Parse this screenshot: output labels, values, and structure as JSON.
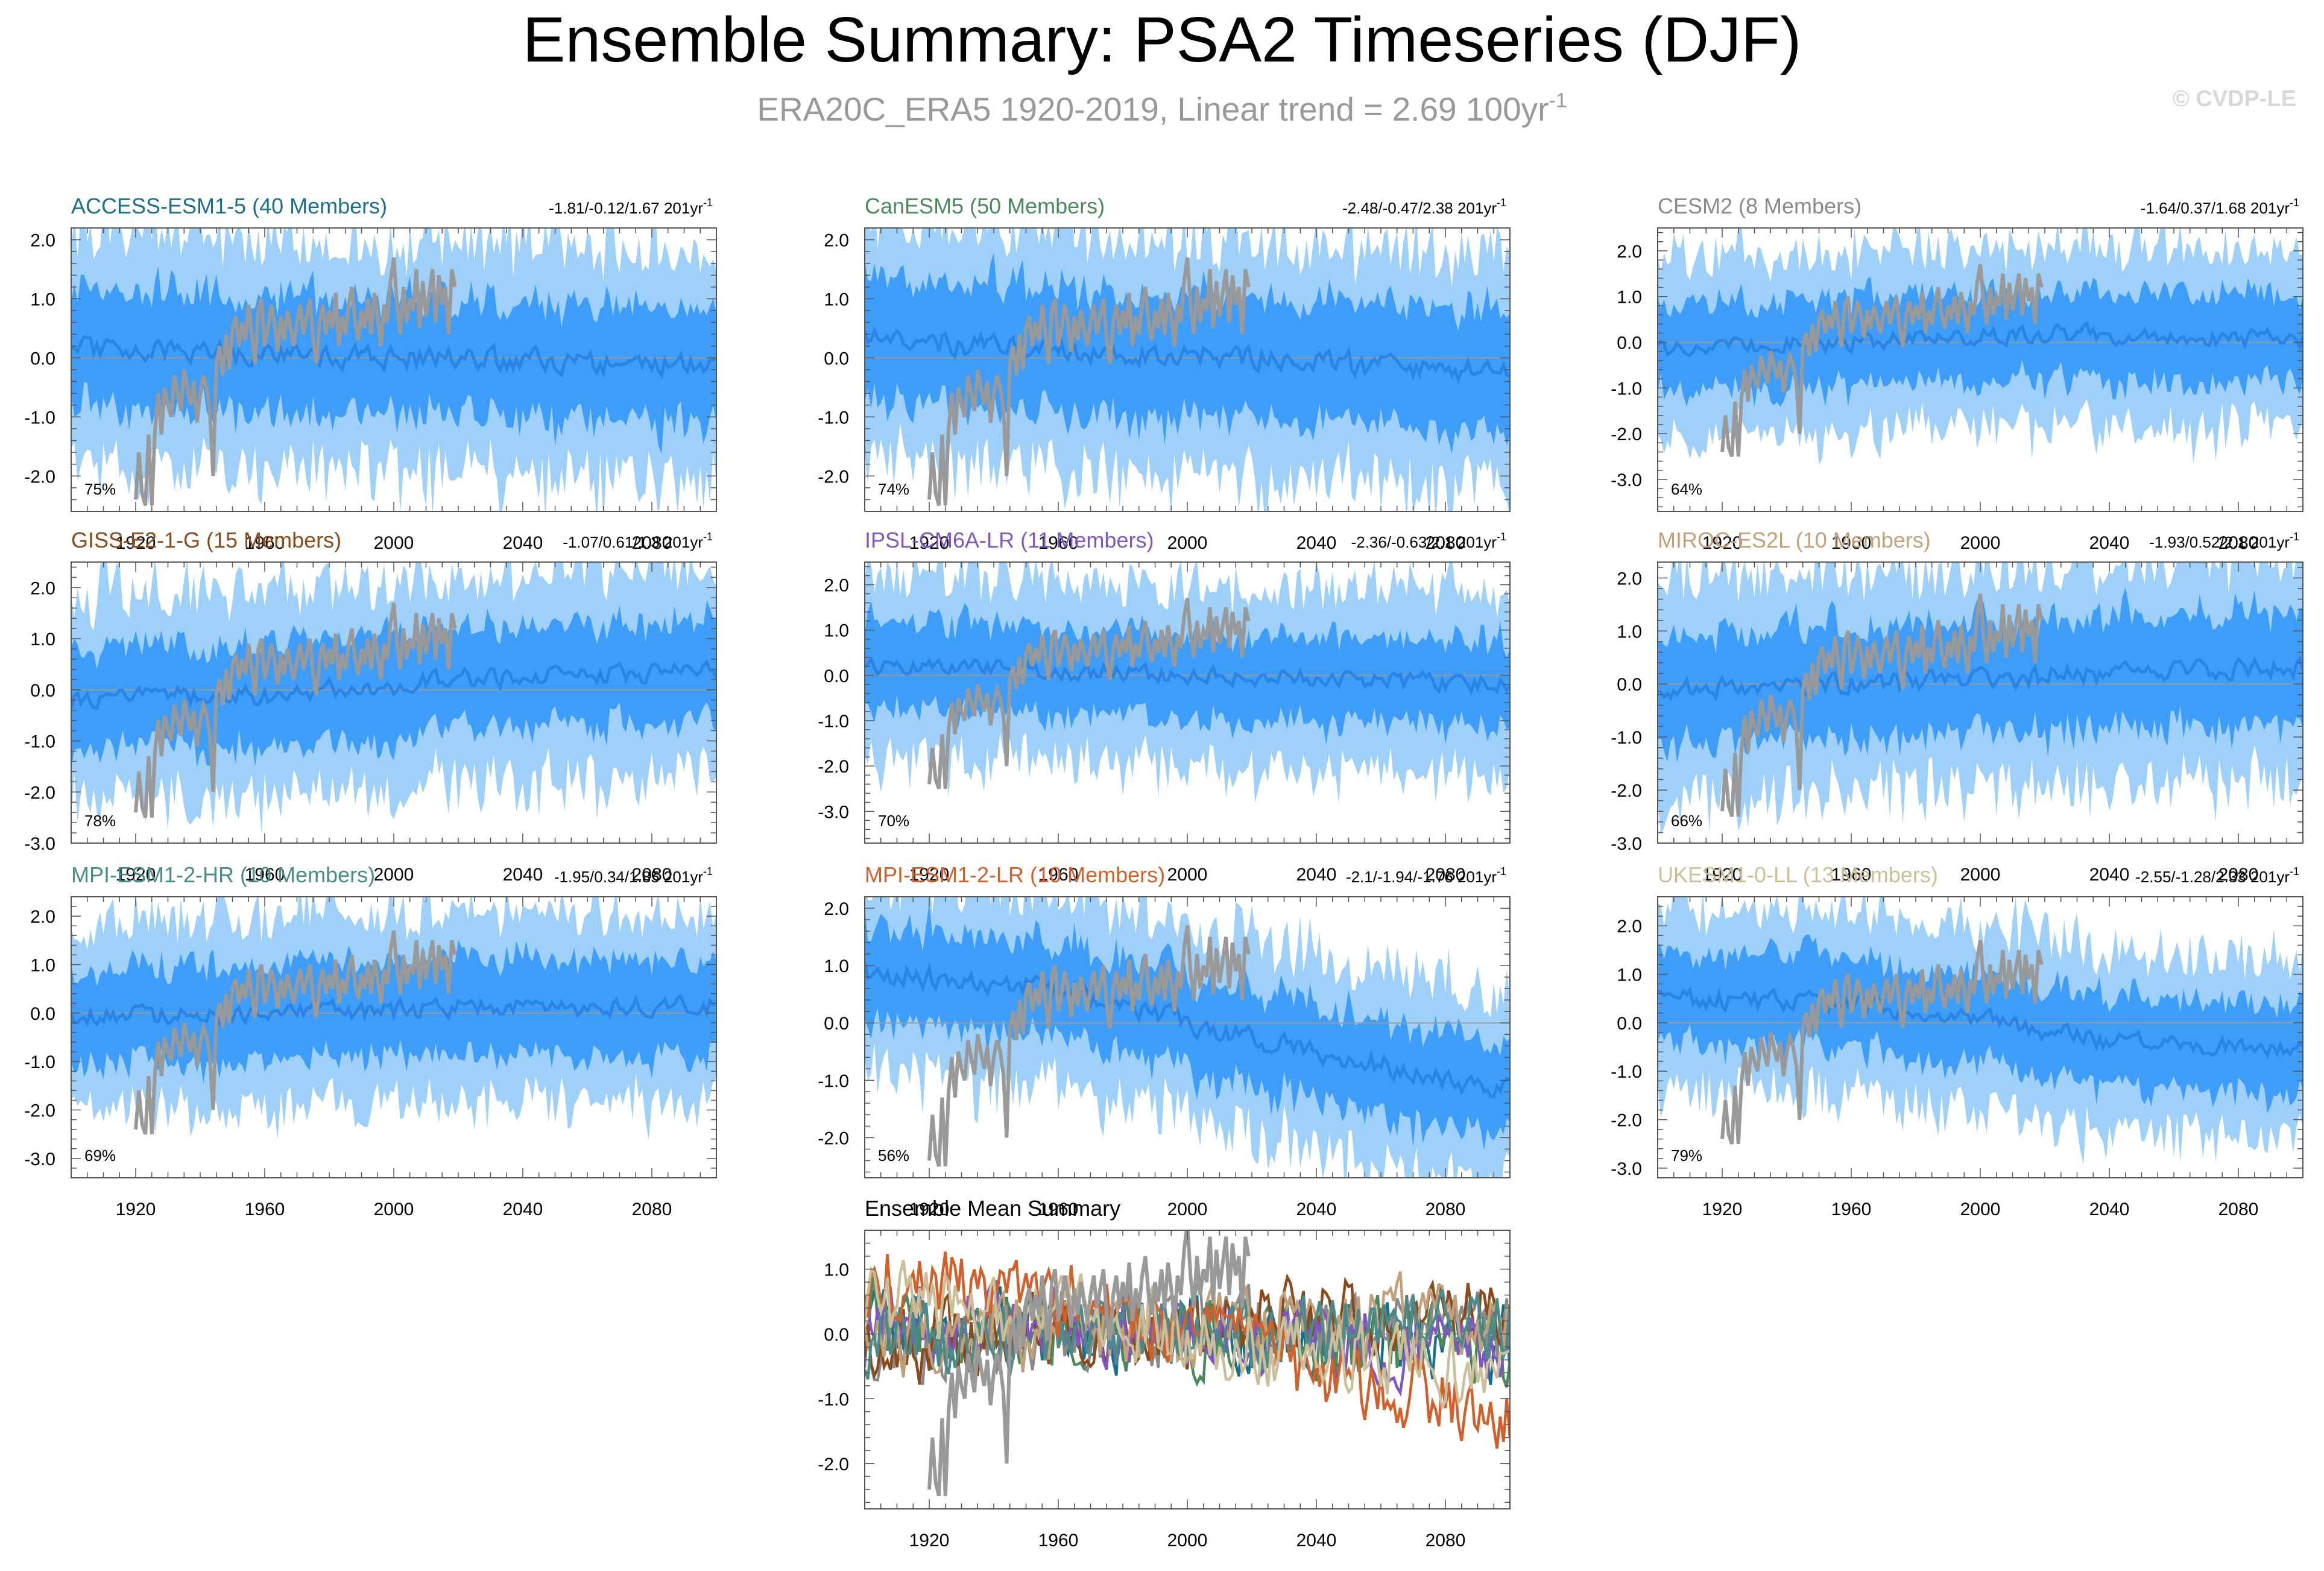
{
  "header": {
    "title": "Ensemble Summary: PSA2 Timeseries (DJF)",
    "subtitle_main": "ERA20C_ERA5 1920-2019, Linear trend = 2.69 100yr",
    "subtitle_exp": "-1",
    "credit": "© CVDP-LE"
  },
  "trend_unit": "201yr",
  "trend_unit_exp": "-1",
  "colors": {
    "outer_band": "#9fd0fa",
    "inner_band": "#3d9df8",
    "ens_mean": "#2a84e6",
    "obs": "#999999",
    "zero_line": "#9a9a9a",
    "axis": "#555555"
  },
  "chart_data": [
    {
      "type": "area",
      "title": "ACCESS-ESM1-5 (40 Members)",
      "title_color": "#1b6e8c",
      "trend_text": "-1.81/-0.12/1.67",
      "percent_label": "75%",
      "xlim": [
        1900,
        2100
      ],
      "ylim": [
        -2.6,
        2.2
      ],
      "yticks": [
        2.0,
        1.0,
        0.0,
        -1.0,
        -2.0
      ],
      "xticks": [
        1920,
        1960,
        2000,
        2040,
        2080
      ],
      "inner_halfwidth": 0.75,
      "outer_halfwidth": 1.5,
      "mean_trend": [
        [
          1900,
          0.15
        ],
        [
          1960,
          0.05
        ],
        [
          2020,
          0.0
        ],
        [
          2100,
          -0.15
        ]
      ],
      "seed": 11
    },
    {
      "type": "area",
      "title": "CanESM5 (50 Members)",
      "title_color": "#4a8a5a",
      "trend_text": "-2.48/-0.47/2.38",
      "percent_label": "74%",
      "xlim": [
        1900,
        2100
      ],
      "ylim": [
        -2.6,
        2.2
      ],
      "yticks": [
        2.0,
        1.0,
        0.0,
        -1.0,
        -2.0
      ],
      "xticks": [
        1920,
        1960,
        2000,
        2040,
        2080
      ],
      "inner_halfwidth": 0.8,
      "outer_halfwidth": 1.5,
      "mean_trend": [
        [
          1900,
          0.3
        ],
        [
          1960,
          0.15
        ],
        [
          2020,
          0.0
        ],
        [
          2100,
          -0.25
        ]
      ],
      "seed": 23
    },
    {
      "type": "area",
      "title": "CESM2 (8 Members)",
      "title_color": "#8a8a8a",
      "trend_text": "-1.64/0.37/1.68",
      "percent_label": "64%",
      "xlim": [
        1900,
        2100
      ],
      "ylim": [
        -3.7,
        2.5
      ],
      "yticks": [
        2.0,
        1.0,
        0.0,
        -1.0,
        -2.0,
        -3.0
      ],
      "xticks": [
        1920,
        1960,
        2000,
        2040,
        2080
      ],
      "inner_halfwidth": 0.7,
      "outer_halfwidth": 1.5,
      "mean_trend": [
        [
          1900,
          -0.2
        ],
        [
          1960,
          0.0
        ],
        [
          2020,
          0.2
        ],
        [
          2100,
          0.05
        ]
      ],
      "seed": 37
    },
    {
      "type": "area",
      "title": "GISS-E2-1-G (15 Members)",
      "title_color": "#8a4a1a",
      "trend_text": "-1.07/0.61/1.3",
      "percent_label": "78%",
      "xlim": [
        1900,
        2100
      ],
      "ylim": [
        -3.0,
        2.5
      ],
      "yticks": [
        2.0,
        1.0,
        0.0,
        -1.0,
        -2.0,
        -3.0
      ],
      "xticks": [
        1920,
        1960,
        2000,
        2040,
        2080
      ],
      "inner_halfwidth": 0.75,
      "outer_halfwidth": 1.5,
      "mean_trend": [
        [
          1900,
          -0.2
        ],
        [
          1960,
          -0.1
        ],
        [
          2020,
          0.2
        ],
        [
          2100,
          0.35
        ]
      ],
      "seed": 41
    },
    {
      "type": "area",
      "title": "IPSL-CM6A-LR (11 Members)",
      "title_color": "#7e57c2",
      "trend_text": "-2.36/-0.63/2.1",
      "percent_label": "70%",
      "xlim": [
        1900,
        2100
      ],
      "ylim": [
        -3.7,
        2.5
      ],
      "yticks": [
        2.0,
        1.0,
        0.0,
        -1.0,
        -2.0,
        -3.0
      ],
      "xticks": [
        1920,
        1960,
        2000,
        2040,
        2080
      ],
      "inner_halfwidth": 0.7,
      "outer_halfwidth": 1.5,
      "mean_trend": [
        [
          1900,
          0.2
        ],
        [
          1960,
          0.1
        ],
        [
          2020,
          -0.05
        ],
        [
          2100,
          -0.2
        ]
      ],
      "seed": 53
    },
    {
      "type": "area",
      "title": "MIROC-ES2L (10 Members)",
      "title_color": "#c2a07a",
      "trend_text": "-1.93/0.52/2.1",
      "percent_label": "66%",
      "xlim": [
        1900,
        2100
      ],
      "ylim": [
        -3.0,
        2.3
      ],
      "yticks": [
        2.0,
        1.0,
        0.0,
        -1.0,
        -2.0,
        -3.0
      ],
      "xticks": [
        1920,
        1960,
        2000,
        2040,
        2080
      ],
      "inner_halfwidth": 0.8,
      "outer_halfwidth": 1.6,
      "mean_trend": [
        [
          1900,
          -0.1
        ],
        [
          1960,
          0.0
        ],
        [
          2020,
          0.15
        ],
        [
          2100,
          0.3
        ]
      ],
      "seed": 67
    },
    {
      "type": "area",
      "title": "MPI-ESM1-2-HR (10 Members)",
      "title_color": "#4a8a8a",
      "trend_text": "-1.95/0.34/1.85",
      "percent_label": "69%",
      "xlim": [
        1900,
        2100
      ],
      "ylim": [
        -3.4,
        2.4
      ],
      "yticks": [
        2.0,
        1.0,
        0.0,
        -1.0,
        -2.0,
        -3.0
      ],
      "xticks": [
        1920,
        1960,
        2000,
        2040,
        2080
      ],
      "inner_halfwidth": 0.75,
      "outer_halfwidth": 1.5,
      "mean_trend": [
        [
          1900,
          -0.1
        ],
        [
          1960,
          0.0
        ],
        [
          2020,
          0.1
        ],
        [
          2100,
          0.15
        ]
      ],
      "seed": 79
    },
    {
      "type": "area",
      "title": "MPI-ESM1-2-LR (10 Members)",
      "title_color": "#d2602a",
      "trend_text": "-2.1/-1.94/-1.76",
      "percent_label": "56%",
      "xlim": [
        1900,
        2100
      ],
      "ylim": [
        -2.7,
        2.2
      ],
      "yticks": [
        2.0,
        1.0,
        0.0,
        -1.0,
        -2.0
      ],
      "xticks": [
        1920,
        1960,
        2000,
        2040,
        2080
      ],
      "inner_halfwidth": 0.6,
      "outer_halfwidth": 1.2,
      "mean_trend": [
        [
          1900,
          0.9
        ],
        [
          1960,
          0.6
        ],
        [
          2000,
          0.0
        ],
        [
          2040,
          -0.5
        ],
        [
          2100,
          -1.2
        ]
      ],
      "seed": 83
    },
    {
      "type": "area",
      "title": "UKESM1-0-LL (13 Members)",
      "title_color": "#cbbf9a",
      "trend_text": "-2.55/-1.28/2.33",
      "percent_label": "79%",
      "xlim": [
        1900,
        2100
      ],
      "ylim": [
        -3.2,
        2.6
      ],
      "yticks": [
        2.0,
        1.0,
        0.0,
        -1.0,
        -2.0,
        -3.0
      ],
      "xticks": [
        1920,
        1960,
        2000,
        2040,
        2080
      ],
      "inner_halfwidth": 0.7,
      "outer_halfwidth": 1.4,
      "mean_trend": [
        [
          1900,
          0.5
        ],
        [
          1960,
          0.4
        ],
        [
          2000,
          0.1
        ],
        [
          2040,
          -0.4
        ],
        [
          2100,
          -0.5
        ]
      ],
      "seed": 97
    },
    {
      "type": "line",
      "title": "Ensemble Mean Summary",
      "title_color": "#000000",
      "xlim": [
        1900,
        2100
      ],
      "ylim": [
        -2.7,
        1.6
      ],
      "yticks": [
        1.0,
        0.0,
        -1.0,
        -2.0
      ],
      "xticks": [
        1920,
        1960,
        2000,
        2040,
        2080
      ],
      "series": [
        {
          "name": "ACCESS-ESM1-5",
          "color": "#1b6e8c",
          "trend": [
            [
              1900,
              0.15
            ],
            [
              2100,
              -0.15
            ]
          ],
          "seed": 11
        },
        {
          "name": "CanESM5",
          "color": "#4a8a5a",
          "trend": [
            [
              1900,
              0.3
            ],
            [
              2100,
              -0.25
            ]
          ],
          "seed": 23
        },
        {
          "name": "CESM2",
          "color": "#8a8a8a",
          "trend": [
            [
              1900,
              -0.2
            ],
            [
              2020,
              0.2
            ],
            [
              2100,
              0.05
            ]
          ],
          "seed": 37
        },
        {
          "name": "GISS-E2-1-G",
          "color": "#8a4a1a",
          "trend": [
            [
              1900,
              -0.2
            ],
            [
              2100,
              0.35
            ]
          ],
          "seed": 41
        },
        {
          "name": "IPSL-CM6A-LR",
          "color": "#7e57c2",
          "trend": [
            [
              1900,
              0.2
            ],
            [
              2100,
              -0.2
            ]
          ],
          "seed": 53
        },
        {
          "name": "MIROC-ES2L",
          "color": "#c2a07a",
          "trend": [
            [
              1900,
              -0.1
            ],
            [
              2100,
              0.3
            ]
          ],
          "seed": 67
        },
        {
          "name": "MPI-ESM1-2-HR",
          "color": "#4a8a8a",
          "trend": [
            [
              1900,
              -0.1
            ],
            [
              2100,
              0.15
            ]
          ],
          "seed": 79
        },
        {
          "name": "MPI-ESM1-2-LR",
          "color": "#d2602a",
          "trend": [
            [
              1900,
              0.9
            ],
            [
              1960,
              0.6
            ],
            [
              2000,
              0.0
            ],
            [
              2040,
              -0.5
            ],
            [
              2100,
              -1.2
            ]
          ],
          "seed": 83
        },
        {
          "name": "UKESM1-0-LL",
          "color": "#cbbf9a",
          "trend": [
            [
              1900,
              0.5
            ],
            [
              1960,
              0.4
            ],
            [
              2000,
              0.1
            ],
            [
              2040,
              -0.4
            ],
            [
              2100,
              -0.5
            ]
          ],
          "seed": 97
        }
      ]
    }
  ],
  "observations": {
    "name": "ERA20C_ERA5",
    "years": [
      1920,
      1921,
      1922,
      1923,
      1924,
      1925,
      1926,
      1927,
      1928,
      1929,
      1930,
      1931,
      1932,
      1933,
      1934,
      1935,
      1936,
      1937,
      1938,
      1939,
      1940,
      1941,
      1942,
      1943,
      1944,
      1945,
      1946,
      1947,
      1948,
      1949,
      1950,
      1951,
      1952,
      1953,
      1954,
      1955,
      1956,
      1957,
      1958,
      1959,
      1960,
      1961,
      1962,
      1963,
      1964,
      1965,
      1966,
      1967,
      1968,
      1969,
      1970,
      1971,
      1972,
      1973,
      1974,
      1975,
      1976,
      1977,
      1978,
      1979,
      1980,
      1981,
      1982,
      1983,
      1984,
      1985,
      1986,
      1987,
      1988,
      1989,
      1990,
      1991,
      1992,
      1993,
      1994,
      1995,
      1996,
      1997,
      1998,
      1999,
      2000,
      2001,
      2002,
      2003,
      2004,
      2005,
      2006,
      2007,
      2008,
      2009,
      2010,
      2011,
      2012,
      2013,
      2014,
      2015,
      2016,
      2017,
      2018,
      2019
    ],
    "values": [
      -2.4,
      -1.6,
      -2.3,
      -2.5,
      -1.3,
      -2.5,
      -1.2,
      -0.6,
      -1.3,
      -0.5,
      -0.8,
      -1.0,
      -0.3,
      -0.6,
      -0.9,
      -0.2,
      -0.5,
      -0.8,
      -0.4,
      -1.1,
      -0.6,
      -0.3,
      -0.5,
      -0.9,
      -2.0,
      -0.1,
      0.2,
      -0.3,
      0.4,
      -0.2,
      0.5,
      0.7,
      0.2,
      0.6,
      0.3,
      0.9,
      0.4,
      -0.1,
      0.8,
      1.0,
      0.2,
      0.5,
      0.9,
      0.6,
      0.1,
      0.7,
      0.3,
      0.8,
      0.5,
      0.2,
      0.6,
      0.9,
      0.4,
      0.7,
      1.0,
      0.3,
      -0.1,
      0.6,
      0.9,
      0.4,
      0.8,
      0.5,
      1.1,
      0.2,
      0.7,
      0.4,
      0.9,
      1.2,
      0.6,
      0.3,
      0.8,
      0.5,
      1.0,
      0.4,
      1.1,
      0.7,
      0.2,
      0.9,
      0.6,
      1.3,
      1.7,
      0.9,
      0.4,
      1.2,
      0.6,
      1.0,
      0.8,
      1.5,
      0.5,
      1.3,
      0.7,
      1.1,
      1.5,
      0.6,
      1.4,
      0.9,
      1.2,
      0.4,
      1.5,
      1.2
    ]
  }
}
